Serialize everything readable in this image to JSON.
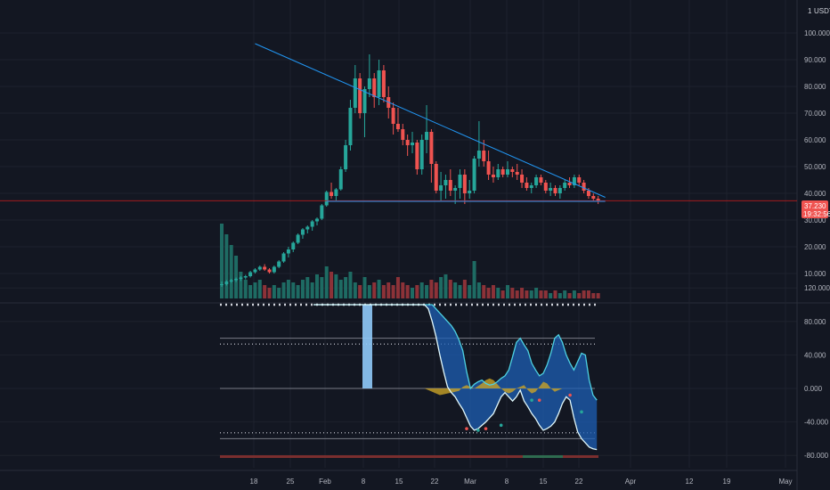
{
  "header": {
    "unit": "USDT"
  },
  "price_tag": {
    "value": "37.230",
    "countdown": "19:32:56"
  },
  "colors": {
    "background": "#131722",
    "grid": "#1e222d",
    "up": "#26a69a",
    "down": "#ef5350",
    "vol_up": "#1e6b63",
    "vol_down": "#8c3238",
    "trendline": "#2196f3",
    "price_line": "#b71c1c",
    "osc_line": "#4dd0e1",
    "osc_line2": "#0b5ab7",
    "osc_fill": "#1e5fb4",
    "osc_band_fill": "#2a6fdb",
    "yellow": "#c9a227",
    "dots": "#d1d4dc",
    "bottom_bar_red": "#7a2e2e",
    "bottom_bar_green": "#2e6b4f"
  },
  "chart_data": [
    {
      "type": "candlestick",
      "title": "",
      "ylabel": "USDT",
      "yticks": [
        "100.000",
        "90.000",
        "80.000",
        "70.000",
        "60.000",
        "50.000",
        "40.000",
        "30.000",
        "20.000",
        "10.000"
      ],
      "ylim": [
        0,
        105
      ],
      "xticks": [
        "18",
        "25",
        "Feb",
        "8",
        "15",
        "22",
        "Mar",
        "8",
        "15",
        "22",
        "Apr",
        "12",
        "19",
        "May"
      ],
      "last_price": 37.23,
      "ohlc": [
        [
          6,
          7,
          5,
          6
        ],
        [
          6,
          7.5,
          5.5,
          7
        ],
        [
          7,
          8,
          6.5,
          7.5
        ],
        [
          7.5,
          8.5,
          6.8,
          8
        ],
        [
          8,
          9,
          7.2,
          8.5
        ],
        [
          8.5,
          9.5,
          7.8,
          9
        ],
        [
          9,
          11,
          8.5,
          10.5
        ],
        [
          10.5,
          12,
          10,
          11.5
        ],
        [
          11.5,
          13,
          11,
          12.5
        ],
        [
          12.5,
          13.5,
          11,
          11.5
        ],
        [
          11.5,
          12,
          10,
          10.5
        ],
        [
          10.5,
          13,
          10,
          12.5
        ],
        [
          12.5,
          15,
          12,
          14.5
        ],
        [
          14.5,
          18,
          14,
          17.5
        ],
        [
          17.5,
          20,
          16,
          19
        ],
        [
          19,
          22,
          18,
          21.5
        ],
        [
          21.5,
          25,
          21,
          24.5
        ],
        [
          24.5,
          27,
          23,
          26.5
        ],
        [
          26.5,
          28,
          25,
          27.5
        ],
        [
          27.5,
          30,
          26,
          29.5
        ],
        [
          29.5,
          31,
          28,
          30.5
        ],
        [
          30.5,
          36,
          30,
          35.5
        ],
        [
          35.5,
          41,
          35,
          40.5
        ],
        [
          40.5,
          44,
          38,
          39
        ],
        [
          39,
          42,
          37,
          41.5
        ],
        [
          41.5,
          50,
          41,
          49
        ],
        [
          49,
          60,
          48,
          58
        ],
        [
          58,
          75,
          56,
          72
        ],
        [
          72,
          88,
          70,
          83
        ],
        [
          83,
          85,
          68,
          70
        ],
        [
          70,
          80,
          61,
          79
        ],
        [
          79,
          92,
          76,
          83
        ],
        [
          83,
          85,
          72,
          76
        ],
        [
          76,
          90,
          73,
          86
        ],
        [
          86,
          88,
          74,
          76
        ],
        [
          76,
          80,
          68,
          72
        ],
        [
          72,
          74,
          62,
          66
        ],
        [
          66,
          72,
          63,
          64
        ],
        [
          64,
          66,
          58,
          60
        ],
        [
          60,
          62,
          54,
          58
        ],
        [
          58,
          63,
          55,
          59
        ],
        [
          59,
          60,
          47,
          49
        ],
        [
          49,
          62,
          47,
          60
        ],
        [
          60,
          73,
          55,
          63
        ],
        [
          63,
          64,
          44,
          51
        ],
        [
          51,
          52,
          40,
          41
        ],
        [
          41,
          48,
          37,
          43
        ],
        [
          43,
          47,
          38,
          45
        ],
        [
          45,
          49,
          39,
          41
        ],
        [
          41,
          43,
          36,
          42
        ],
        [
          42,
          49,
          38,
          47
        ],
        [
          47,
          49,
          36,
          40
        ],
        [
          40,
          45,
          38,
          41
        ],
        [
          41,
          54,
          40,
          53
        ],
        [
          53,
          67,
          50,
          56
        ],
        [
          56,
          60,
          50,
          52
        ],
        [
          52,
          56,
          45,
          47
        ],
        [
          47,
          50,
          44,
          46
        ],
        [
          46,
          51,
          45,
          49
        ],
        [
          49,
          50,
          46,
          47
        ],
        [
          47,
          52,
          46,
          49
        ],
        [
          49,
          50,
          46,
          48
        ],
        [
          48,
          51,
          45,
          47
        ],
        [
          47,
          49,
          42,
          44
        ],
        [
          44,
          46,
          41,
          42
        ],
        [
          42,
          44,
          40,
          43
        ],
        [
          43,
          47,
          42,
          46
        ],
        [
          46,
          47,
          43,
          44
        ],
        [
          44,
          45,
          40,
          41
        ],
        [
          41,
          44,
          39,
          42
        ],
        [
          42,
          43,
          39,
          40
        ],
        [
          40,
          43,
          38,
          42
        ],
        [
          42,
          45,
          41,
          44
        ],
        [
          44,
          46,
          42,
          43
        ],
        [
          43,
          47,
          42,
          46
        ],
        [
          46,
          47,
          43,
          44
        ],
        [
          44,
          45,
          40,
          41
        ],
        [
          41,
          42,
          38,
          39
        ],
        [
          39,
          40,
          37,
          38
        ],
        [
          38,
          39,
          36,
          37.23
        ]
      ],
      "volume": [
        28,
        24,
        20,
        16,
        10,
        7,
        5,
        6,
        7,
        5,
        4,
        5,
        4,
        6,
        7,
        6,
        5,
        7,
        8,
        6,
        9,
        8,
        12,
        10,
        9,
        7,
        8,
        10,
        6,
        5,
        8,
        5,
        6,
        7,
        5,
        6,
        5,
        8,
        6,
        5,
        4,
        5,
        6,
        5,
        7,
        6,
        8,
        9,
        7,
        6,
        5,
        7,
        5,
        14,
        6,
        5,
        4,
        5,
        4,
        3,
        5,
        4,
        3,
        4,
        3,
        3,
        4,
        3,
        3,
        2,
        3,
        2,
        3,
        2,
        3,
        2,
        3,
        3,
        2,
        2
      ],
      "trendline": {
        "start": [
          7,
          96
        ],
        "end": [
          80.5,
          38.5
        ]
      },
      "support": {
        "start": [
          22,
          37
        ],
        "end": [
          80.5,
          37
        ]
      }
    },
    {
      "type": "area",
      "title": "",
      "yticks": [
        "120.000",
        "80.000",
        "40.000",
        "0.000",
        "-40.000",
        "-80.000"
      ],
      "ylim": [
        -100,
        120
      ],
      "levels": [
        100,
        60,
        53,
        -53,
        -60
      ],
      "series": [
        {
          "values": [
            100,
            100,
            100,
            100,
            100,
            100,
            100,
            100,
            100,
            100,
            100,
            100,
            100,
            100,
            100,
            100,
            100,
            100,
            100,
            100,
            100,
            100,
            100,
            100,
            100,
            100,
            100,
            100,
            100,
            100,
            100,
            100,
            95,
            90,
            85,
            80,
            75,
            68,
            58,
            45,
            20,
            0,
            5,
            8,
            10,
            6,
            4,
            5,
            8,
            12,
            15,
            22,
            38,
            55,
            60,
            52,
            45,
            30,
            22,
            15,
            18,
            28,
            42,
            60,
            64,
            55,
            40,
            30,
            22,
            32,
            42,
            40,
            10,
            -8,
            -14
          ]
        },
        {
          "values": [
            100,
            100,
            100,
            100,
            100,
            100,
            100,
            100,
            100,
            100,
            100,
            100,
            100,
            100,
            100,
            100,
            100,
            100,
            100,
            100,
            100,
            100,
            100,
            100,
            100,
            100,
            100,
            100,
            100,
            100,
            95,
            80,
            62,
            40,
            20,
            2,
            -5,
            -10,
            -18,
            -25,
            -35,
            -45,
            -50,
            -48,
            -44,
            -40,
            -35,
            -30,
            -20,
            -10,
            -5,
            -10,
            -15,
            -10,
            -2,
            -15,
            -22,
            -30,
            -36,
            -44,
            -50,
            -48,
            -45,
            -40,
            -30,
            -18,
            -10,
            -14,
            -35,
            -52,
            -60,
            -65,
            -70,
            -72,
            -73
          ]
        },
        {
          "values": [
            0,
            0,
            0,
            0,
            0,
            0,
            0,
            0,
            0,
            0,
            0,
            0,
            0,
            0,
            0,
            0,
            0,
            0,
            0,
            0,
            0,
            0,
            0,
            0,
            0,
            0,
            0,
            0,
            0,
            0,
            -2,
            -4,
            -6,
            -8,
            -7,
            -6,
            -5,
            -4,
            -3,
            2,
            4,
            2,
            0,
            3,
            6,
            10,
            12,
            10,
            5,
            0,
            -4,
            -6,
            -4,
            0,
            2,
            4,
            -2,
            -6,
            -4,
            2,
            8,
            6,
            0,
            -4,
            -2,
            0,
            0,
            0,
            0,
            0,
            0,
            0,
            0,
            0,
            0,
            0,
            0,
            0,
            0,
            0
          ]
        }
      ]
    }
  ]
}
